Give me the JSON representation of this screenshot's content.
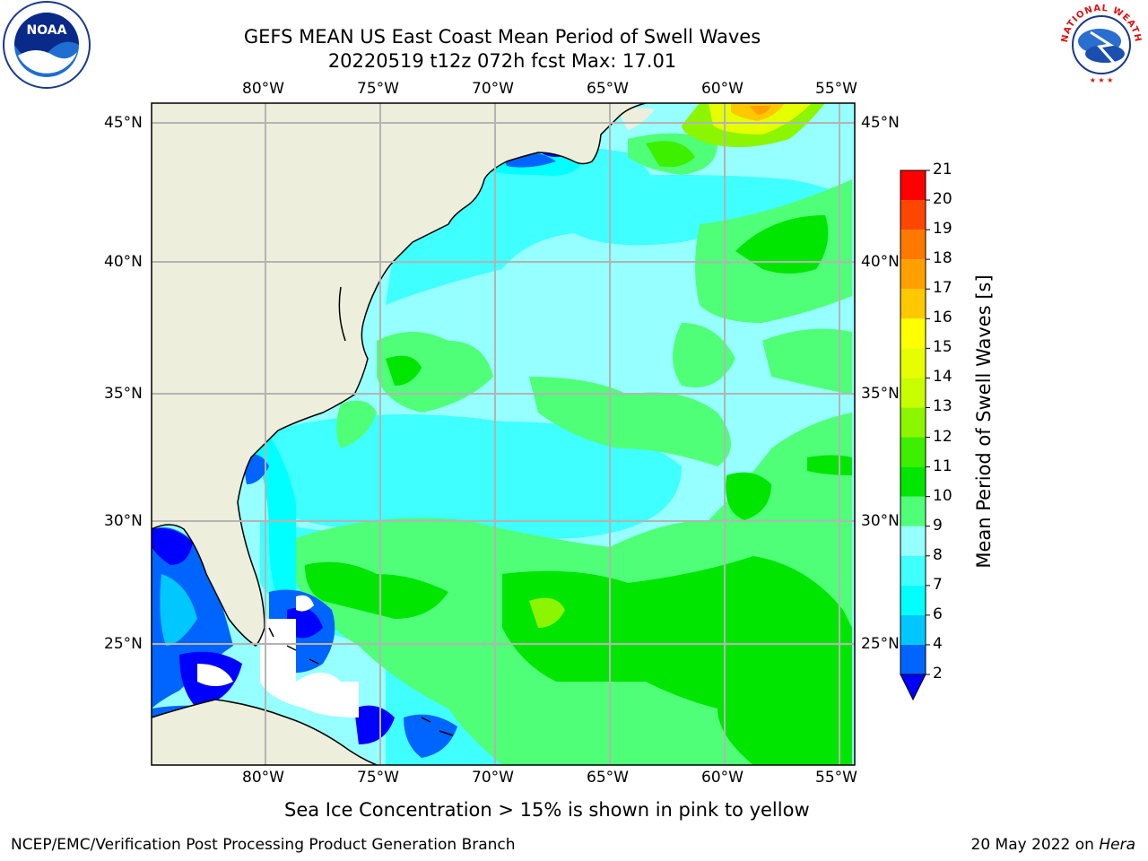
{
  "title": {
    "line1": "GEFS MEAN US East Coast Mean Period of Swell Waves",
    "line2": "20220519 t12z 072h fcst   Max: 17.01"
  },
  "logos": {
    "left": {
      "icon": "noaa-logo-icon",
      "text": "NOAA"
    },
    "right": {
      "icon": "nws-logo-icon",
      "text": "NATIONAL WEATHER SERVICE"
    }
  },
  "map": {
    "lon_labels": [
      "80°W",
      "75°W",
      "70°W",
      "65°W",
      "60°W",
      "55°W"
    ],
    "lat_labels": [
      "45°N",
      "40°N",
      "35°N",
      "30°N",
      "25°N"
    ],
    "colors": {
      "land": "#eeeedc",
      "grid": "#b4b4b4",
      "coast": "#000000"
    }
  },
  "colorbar": {
    "title": "Mean Period of Swell Waves [s]",
    "ticks": [
      "2",
      "4",
      "6",
      "7",
      "8",
      "9",
      "10",
      "11",
      "12",
      "13",
      "14",
      "15",
      "16",
      "17",
      "18",
      "19",
      "20",
      "21"
    ],
    "colors": [
      "#0064ff",
      "#00c8ff",
      "#00ffff",
      "#40ffff",
      "#96ffff",
      "#50ff78",
      "#00e600",
      "#3cf000",
      "#8cf500",
      "#c8ff00",
      "#e6ff00",
      "#ffff00",
      "#ffc800",
      "#ffa000",
      "#ff7800",
      "#ff4600",
      "#ff0000"
    ],
    "extend_color": "#0000ff"
  },
  "footer": {
    "note": "Sea Ice Concentration > 15% is shown in pink to yellow",
    "credit": "NCEP/EMC/Verification Post Processing Product Generation Branch",
    "date": "20 May 2022 on",
    "machine": "Hera"
  }
}
